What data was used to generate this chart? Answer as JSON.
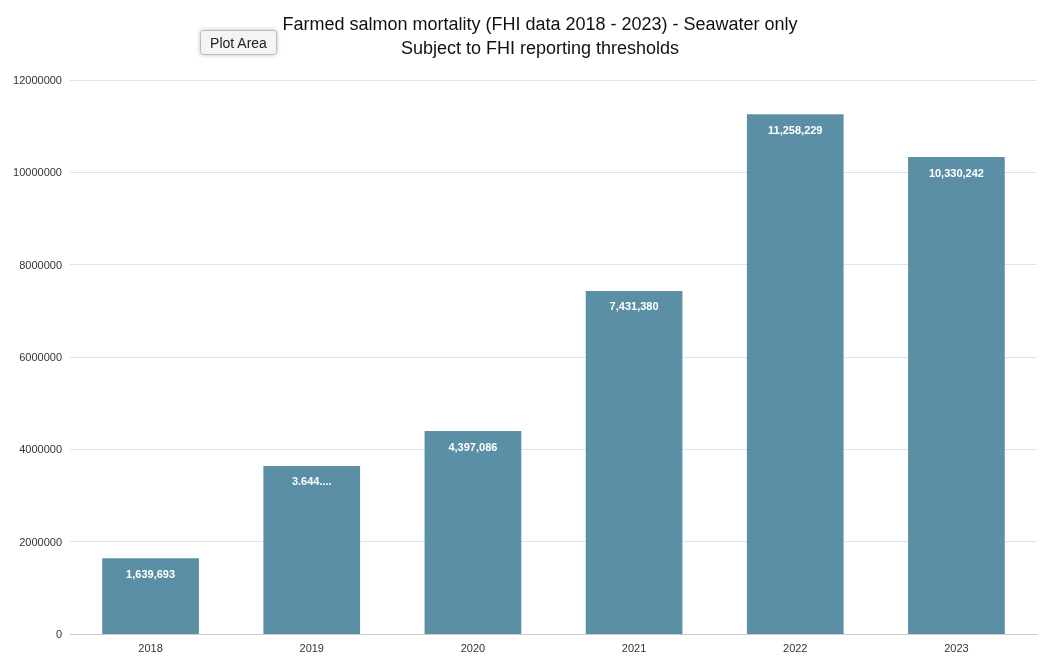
{
  "chart_data": {
    "type": "bar",
    "title": "Farmed salmon mortality (FHI data 2018 - 2023) - Seawater only",
    "subtitle": "Subject to FHI reporting thresholds",
    "categories": [
      "2018",
      "2019",
      "2020",
      "2021",
      "2022",
      "2023"
    ],
    "values": [
      1639693,
      3640000,
      4397086,
      7431380,
      11258229,
      10330242
    ],
    "value_labels": [
      "1,639,693",
      "3.644....",
      "4,397,086",
      "7,431,380",
      "11,258,229",
      "10,330,242"
    ],
    "color": "#5b8fa5",
    "ylim": [
      0,
      12000000
    ],
    "yticks": [
      0,
      2000000,
      4000000,
      6000000,
      8000000,
      10000000,
      12000000
    ],
    "grid": "y",
    "annotations": [
      "Plot Area"
    ]
  }
}
